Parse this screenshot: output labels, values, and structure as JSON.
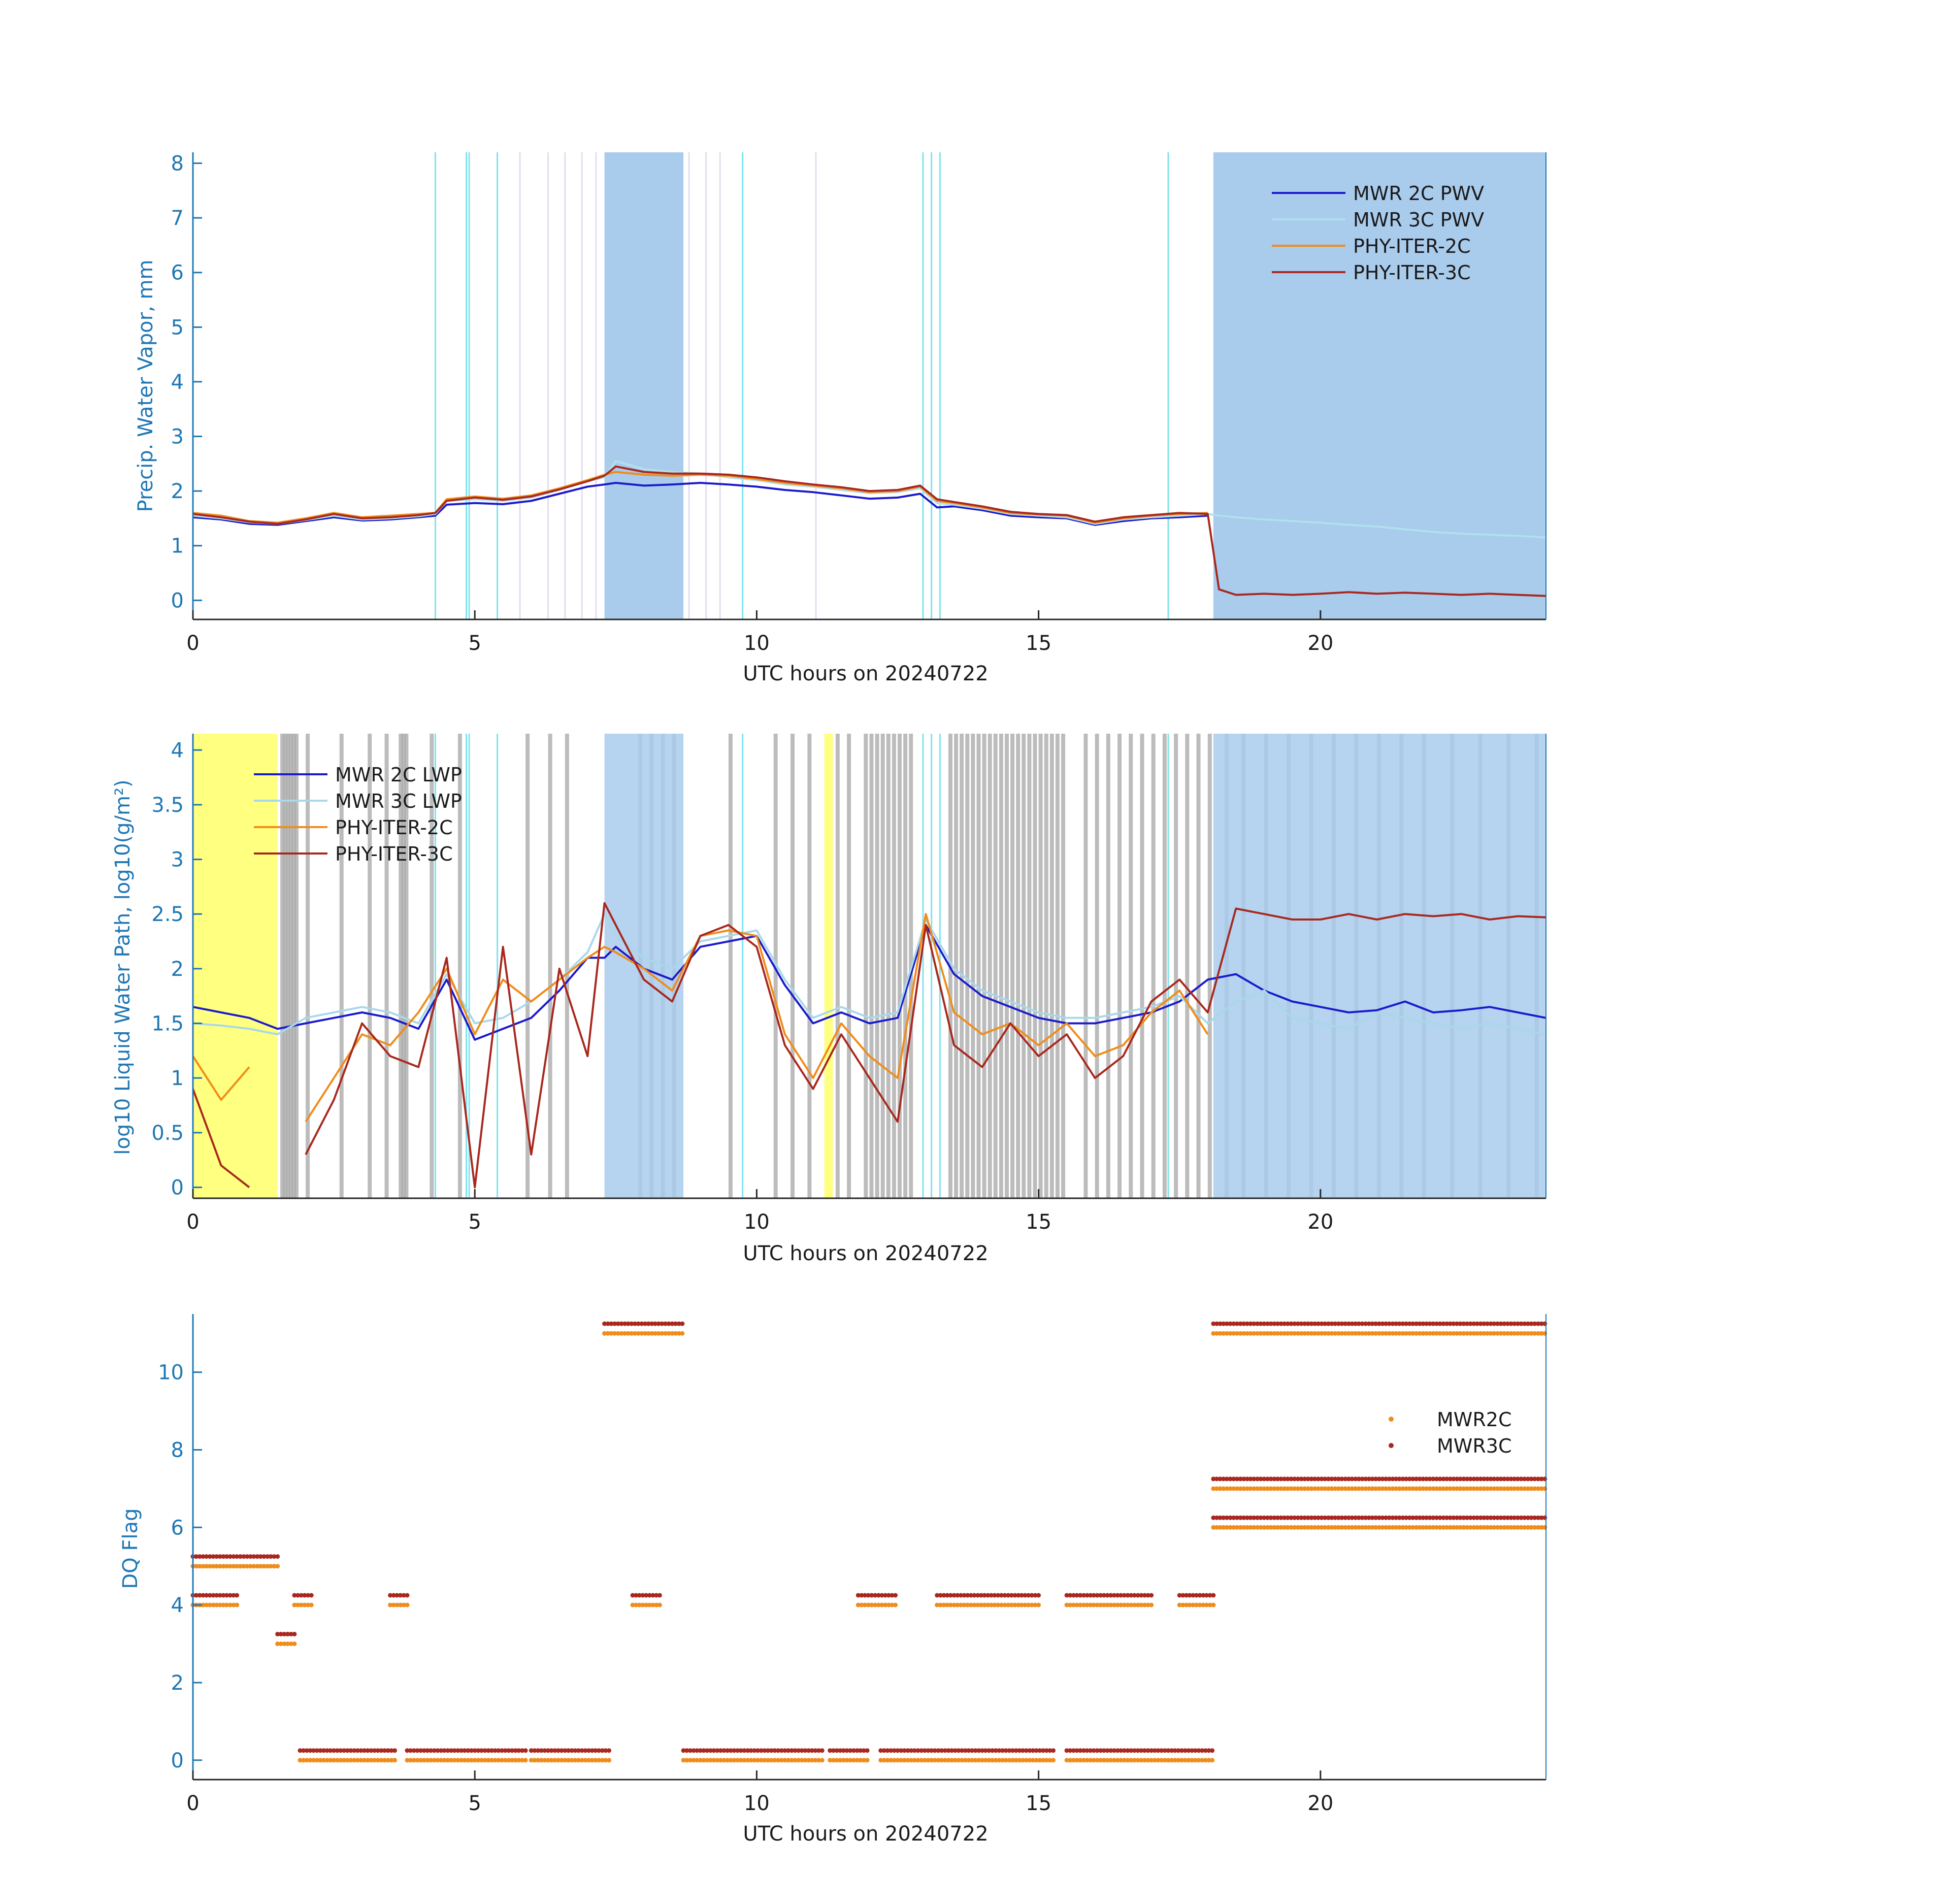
{
  "chart_data": [
    {
      "type": "line",
      "xlabel": "UTC hours on 20240722",
      "ylabel": "Precip. Water Vapor, mm",
      "xlim": [
        0,
        24
      ],
      "ylim": [
        -0.35,
        8.2
      ],
      "xticks": [
        "0",
        "5",
        "10",
        "15",
        "20"
      ],
      "yticks": [
        "0",
        "1",
        "2",
        "3",
        "4",
        "5",
        "6",
        "7",
        "8"
      ],
      "legend_position": "top-right",
      "x": [
        0,
        0.5,
        1,
        1.5,
        2,
        2.5,
        3,
        3.5,
        4,
        4.3,
        4.5,
        5,
        5.5,
        6,
        6.5,
        7,
        7.3,
        7.5,
        8,
        8.5,
        9,
        9.5,
        10,
        10.5,
        11,
        11.5,
        12,
        12.5,
        12.9,
        13.2,
        13.5,
        14,
        14.5,
        15,
        15.5,
        16,
        16.5,
        17,
        17.5,
        18,
        18.2,
        18.5,
        19,
        19.5,
        20,
        20.5,
        21,
        21.5,
        22,
        22.5,
        23,
        23.5,
        24
      ],
      "series": [
        {
          "name": "MWR 2C PWV",
          "color": "#1a1acc",
          "values": [
            1.52,
            1.48,
            1.4,
            1.38,
            1.45,
            1.52,
            1.46,
            1.48,
            1.52,
            1.55,
            1.75,
            1.78,
            1.76,
            1.82,
            1.95,
            2.08,
            2.12,
            2.15,
            2.1,
            2.12,
            2.15,
            2.12,
            2.08,
            2.02,
            1.98,
            1.92,
            1.86,
            1.88,
            1.95,
            1.7,
            1.72,
            1.65,
            1.55,
            1.52,
            1.5,
            1.38,
            1.45,
            1.5,
            1.52,
            1.55,
            null,
            null,
            null,
            null,
            null,
            null,
            null,
            null,
            null,
            null,
            null,
            null,
            null
          ]
        },
        {
          "name": "MWR 3C PWV",
          "color": "#b0e0ee",
          "values": [
            1.55,
            1.5,
            1.43,
            1.4,
            1.47,
            1.55,
            1.48,
            1.5,
            1.54,
            1.58,
            1.82,
            1.85,
            1.82,
            1.88,
            2.02,
            2.18,
            2.25,
            2.55,
            2.4,
            2.35,
            2.32,
            2.25,
            2.2,
            2.12,
            2.08,
            2.02,
            1.96,
            1.98,
            2.05,
            1.78,
            1.75,
            1.68,
            1.58,
            1.55,
            1.52,
            1.4,
            1.48,
            1.52,
            1.55,
            1.58,
            1.55,
            1.52,
            1.48,
            1.45,
            1.42,
            1.38,
            1.35,
            1.3,
            1.25,
            1.22,
            1.2,
            1.18,
            1.15
          ]
        },
        {
          "name": "PHY-ITER-2C",
          "color": "#f08c1a",
          "values": [
            1.6,
            1.55,
            1.45,
            1.42,
            1.5,
            1.6,
            1.52,
            1.55,
            1.58,
            1.6,
            1.85,
            1.9,
            1.86,
            1.92,
            2.05,
            2.2,
            2.3,
            2.35,
            2.3,
            2.28,
            2.3,
            2.28,
            2.22,
            2.15,
            2.1,
            2.05,
            1.98,
            2.0,
            2.08,
            1.82,
            1.78,
            1.7,
            1.6,
            1.57,
            1.55,
            1.42,
            1.5,
            1.55,
            1.58,
            1.6,
            null,
            null,
            null,
            null,
            null,
            null,
            null,
            null,
            null,
            null,
            null,
            null,
            null
          ]
        },
        {
          "name": "PHY-ITER-3C",
          "color": "#a8281e",
          "values": [
            1.58,
            1.52,
            1.44,
            1.4,
            1.48,
            1.58,
            1.5,
            1.52,
            1.56,
            1.6,
            1.82,
            1.88,
            1.84,
            1.9,
            2.03,
            2.18,
            2.28,
            2.45,
            2.35,
            2.32,
            2.32,
            2.3,
            2.25,
            2.18,
            2.12,
            2.07,
            2.0,
            2.02,
            2.1,
            1.85,
            1.8,
            1.72,
            1.62,
            1.58,
            1.56,
            1.44,
            1.52,
            1.56,
            1.6,
            1.58,
            0.2,
            0.1,
            0.12,
            0.1,
            0.12,
            0.15,
            0.12,
            0.14,
            0.12,
            0.1,
            0.12,
            0.1,
            0.08
          ]
        }
      ],
      "shaded_regions": [
        [
          7.3,
          8.7
        ],
        [
          18.1,
          24
        ]
      ]
    },
    {
      "type": "line",
      "xlabel": "UTC hours on 20240722",
      "ylabel": "log10 Liquid Water Path, log10(g/m²)",
      "xlim": [
        0,
        24
      ],
      "ylim": [
        -0.1,
        4.15
      ],
      "xticks": [
        "0",
        "5",
        "10",
        "15",
        "20"
      ],
      "yticks": [
        "0",
        "0.5",
        "1",
        "1.5",
        "2",
        "2.5",
        "3",
        "3.5",
        "4"
      ],
      "legend_position": "top-left",
      "x": [
        0,
        0.5,
        1,
        1.5,
        2,
        2.5,
        3,
        3.5,
        4,
        4.5,
        5,
        5.5,
        6,
        6.5,
        7,
        7.3,
        7.5,
        8,
        8.5,
        9,
        9.5,
        10,
        10.5,
        11,
        11.5,
        12,
        12.5,
        13,
        13.5,
        14,
        14.5,
        15,
        15.5,
        16,
        16.5,
        17,
        17.5,
        18,
        18.5,
        19,
        19.5,
        20,
        20.5,
        21,
        21.5,
        22,
        22.5,
        23,
        23.5,
        24
      ],
      "series": [
        {
          "name": "MWR 2C LWP",
          "color": "#1a1acc",
          "values": [
            1.65,
            1.6,
            1.55,
            1.45,
            1.5,
            1.55,
            1.6,
            1.55,
            1.45,
            1.9,
            1.35,
            1.45,
            1.55,
            1.8,
            2.1,
            2.1,
            2.2,
            2.0,
            1.9,
            2.2,
            2.25,
            2.3,
            1.85,
            1.5,
            1.6,
            1.5,
            1.55,
            2.4,
            1.95,
            1.75,
            1.65,
            1.55,
            1.5,
            1.5,
            1.55,
            1.6,
            1.7,
            1.9,
            1.95,
            1.8,
            1.7,
            1.65,
            1.6,
            1.62,
            1.7,
            1.6,
            1.62,
            1.65,
            1.6,
            1.55
          ]
        },
        {
          "name": "MWR 3C LWP",
          "color": "#a8d8ea",
          "values": [
            1.5,
            1.48,
            1.45,
            1.4,
            1.55,
            1.6,
            1.65,
            1.6,
            1.5,
            1.95,
            1.5,
            1.55,
            1.7,
            1.9,
            2.15,
            2.5,
            2.3,
            2.1,
            2.0,
            2.25,
            2.3,
            2.35,
            1.9,
            1.55,
            1.65,
            1.55,
            1.6,
            2.45,
            2.0,
            1.8,
            1.7,
            1.6,
            1.55,
            1.55,
            1.6,
            1.65,
            1.75,
            1.5,
            1.7,
            1.8,
            1.55,
            1.5,
            1.45,
            1.6,
            1.55,
            1.5,
            1.45,
            1.5,
            1.45,
            1.4
          ]
        },
        {
          "name": "PHY-ITER-2C",
          "color": "#f08c1a",
          "values": [
            1.2,
            0.8,
            1.1,
            null,
            0.6,
            1.0,
            1.4,
            1.3,
            1.6,
            2.0,
            1.4,
            1.9,
            1.7,
            1.9,
            2.1,
            2.2,
            2.15,
            2.0,
            1.8,
            2.3,
            2.35,
            2.3,
            1.4,
            1.0,
            1.5,
            1.2,
            1.0,
            2.5,
            1.6,
            1.4,
            1.5,
            1.3,
            1.5,
            1.2,
            1.3,
            1.6,
            1.8,
            1.4,
            null,
            null,
            null,
            null,
            null,
            null,
            null,
            null,
            null,
            null,
            null,
            null
          ]
        },
        {
          "name": "PHY-ITER-3C",
          "color": "#a8281e",
          "values": [
            0.9,
            0.2,
            0.0,
            null,
            0.3,
            0.8,
            1.5,
            1.2,
            1.1,
            2.1,
            0.0,
            2.2,
            0.3,
            2.0,
            1.2,
            2.6,
            2.4,
            1.9,
            1.7,
            2.3,
            2.4,
            2.2,
            1.3,
            0.9,
            1.4,
            1.0,
            0.6,
            2.4,
            1.3,
            1.1,
            1.5,
            1.2,
            1.4,
            1.0,
            1.2,
            1.7,
            1.9,
            1.6,
            2.55,
            2.5,
            2.45,
            2.45,
            2.5,
            2.45,
            2.5,
            2.48,
            2.5,
            2.45,
            2.48,
            2.47
          ]
        }
      ],
      "shaded_regions": [
        [
          7.3,
          8.7
        ],
        [
          18.1,
          24
        ]
      ],
      "highlight_regions": [
        [
          0,
          1.5
        ],
        [
          11.2,
          11.35
        ]
      ]
    },
    {
      "type": "scatter",
      "xlabel": "UTC hours on 20240722",
      "ylabel": "DQ Flag",
      "xlim": [
        0,
        24
      ],
      "ylim": [
        -0.5,
        11.5
      ],
      "xticks": [
        "0",
        "5",
        "10",
        "15",
        "20"
      ],
      "yticks": [
        "0",
        "2",
        "4",
        "6",
        "8",
        "10"
      ],
      "legend_position": "top-right",
      "series": [
        {
          "name": "MWR2C",
          "color": "#f08c1a",
          "segments": [
            {
              "y": 0,
              "x": [
                [
                  1.9,
                  3.6
                ],
                [
                  3.8,
                  5.9
                ],
                [
                  6.0,
                  7.4
                ],
                [
                  8.7,
                  11.2
                ],
                [
                  11.3,
                  12.0
                ],
                [
                  12.2,
                  15.3
                ],
                [
                  15.5,
                  18.1
                ]
              ]
            },
            {
              "y": 5,
              "x": [
                [
                  0,
                  1.5
                ]
              ]
            },
            {
              "y": 3,
              "x": [
                [
                  1.5,
                  1.85
                ]
              ]
            },
            {
              "y": 4,
              "x": [
                [
                  0,
                  0.8
                ],
                [
                  1.8,
                  2.1
                ],
                [
                  3.5,
                  3.8
                ],
                [
                  7.8,
                  8.3
                ],
                [
                  11.8,
                  12.5
                ],
                [
                  13.2,
                  15.0
                ],
                [
                  15.5,
                  17.0
                ],
                [
                  17.5,
                  18.1
                ]
              ]
            },
            {
              "y": 11,
              "x": [
                [
                  7.3,
                  8.7
                ],
                [
                  18.1,
                  24
                ]
              ]
            },
            {
              "y": 7,
              "x": [
                [
                  18.1,
                  24
                ]
              ]
            },
            {
              "y": 6,
              "x": [
                [
                  18.1,
                  24
                ]
              ]
            }
          ]
        },
        {
          "name": "MWR3C",
          "color": "#a8281e",
          "segments": [
            {
              "y": 0.25,
              "x": [
                [
                  1.9,
                  3.6
                ],
                [
                  3.8,
                  5.9
                ],
                [
                  6.0,
                  7.4
                ],
                [
                  8.7,
                  11.2
                ],
                [
                  11.3,
                  12.0
                ],
                [
                  12.2,
                  15.3
                ],
                [
                  15.5,
                  18.1
                ]
              ]
            },
            {
              "y": 5.25,
              "x": [
                [
                  0,
                  1.5
                ]
              ]
            },
            {
              "y": 3.25,
              "x": [
                [
                  1.5,
                  1.85
                ]
              ]
            },
            {
              "y": 4.25,
              "x": [
                [
                  0,
                  0.8
                ],
                [
                  1.8,
                  2.1
                ],
                [
                  3.5,
                  3.8
                ],
                [
                  7.8,
                  8.3
                ],
                [
                  11.8,
                  12.5
                ],
                [
                  13.2,
                  15.0
                ],
                [
                  15.5,
                  17.0
                ],
                [
                  17.5,
                  18.1
                ]
              ]
            },
            {
              "y": 11.25,
              "x": [
                [
                  7.3,
                  8.7
                ],
                [
                  18.1,
                  24
                ]
              ]
            },
            {
              "y": 7.25,
              "x": [
                [
                  18.1,
                  24
                ]
              ]
            },
            {
              "y": 6.25,
              "x": [
                [
                  18.1,
                  24
                ]
              ]
            }
          ]
        }
      ]
    }
  ],
  "colors": {
    "axis": "#1f77b4",
    "tick_label": "#1a1a1a",
    "shade": "#a9cbec",
    "highlight": "#ffff80",
    "gray": "#a6a6a6"
  }
}
